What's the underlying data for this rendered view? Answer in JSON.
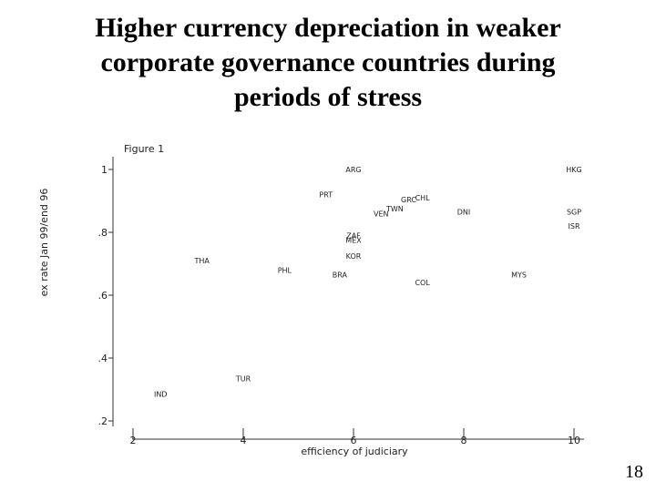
{
  "slide": {
    "title_lines": [
      "Higher currency depreciation in weaker",
      "corporate governance countries during",
      "periods of stress"
    ],
    "page_number": "18"
  },
  "chart_data": {
    "type": "scatter",
    "title": "Figure 1",
    "xlabel": "efficiency of judiciary",
    "ylabel": "ex rate Jan 99/end 96",
    "xlim": [
      2,
      10
    ],
    "ylim": [
      0.2,
      1.0
    ],
    "xticks": [
      2,
      4,
      6,
      8,
      10
    ],
    "xtick_labels": [
      "2",
      "4",
      "6",
      "8",
      "10"
    ],
    "yticks": [
      1.0,
      0.8,
      0.6,
      0.4,
      0.2
    ],
    "ytick_labels": [
      "1",
      ".8",
      ".6",
      ".4",
      ".2"
    ],
    "grid": false,
    "points": [
      {
        "label": "ARG",
        "x": 6.0,
        "y": 1.0
      },
      {
        "label": "HKG",
        "x": 10.0,
        "y": 1.0
      },
      {
        "label": "PRT",
        "x": 5.5,
        "y": 0.92
      },
      {
        "label": "GRC",
        "x": 7.0,
        "y": 0.905
      },
      {
        "label": "CHL",
        "x": 7.25,
        "y": 0.91
      },
      {
        "label": "TWN",
        "x": 6.75,
        "y": 0.875
      },
      {
        "label": "VEN",
        "x": 6.5,
        "y": 0.86
      },
      {
        "label": "DNI",
        "x": 8.0,
        "y": 0.865
      },
      {
        "label": "SGP",
        "x": 10.0,
        "y": 0.865
      },
      {
        "label": "ISR",
        "x": 10.0,
        "y": 0.82
      },
      {
        "label": "ZAF",
        "x": 6.0,
        "y": 0.79
      },
      {
        "label": "MEX",
        "x": 6.0,
        "y": 0.775
      },
      {
        "label": "KOR",
        "x": 6.0,
        "y": 0.725
      },
      {
        "label": "THA",
        "x": 3.25,
        "y": 0.71
      },
      {
        "label": "PHL",
        "x": 4.75,
        "y": 0.68
      },
      {
        "label": "BRA",
        "x": 5.75,
        "y": 0.665
      },
      {
        "label": "MYS",
        "x": 9.0,
        "y": 0.665
      },
      {
        "label": "COL",
        "x": 7.25,
        "y": 0.64
      },
      {
        "label": "TUR",
        "x": 4.0,
        "y": 0.335
      },
      {
        "label": "IND",
        "x": 2.5,
        "y": 0.285
      }
    ]
  }
}
